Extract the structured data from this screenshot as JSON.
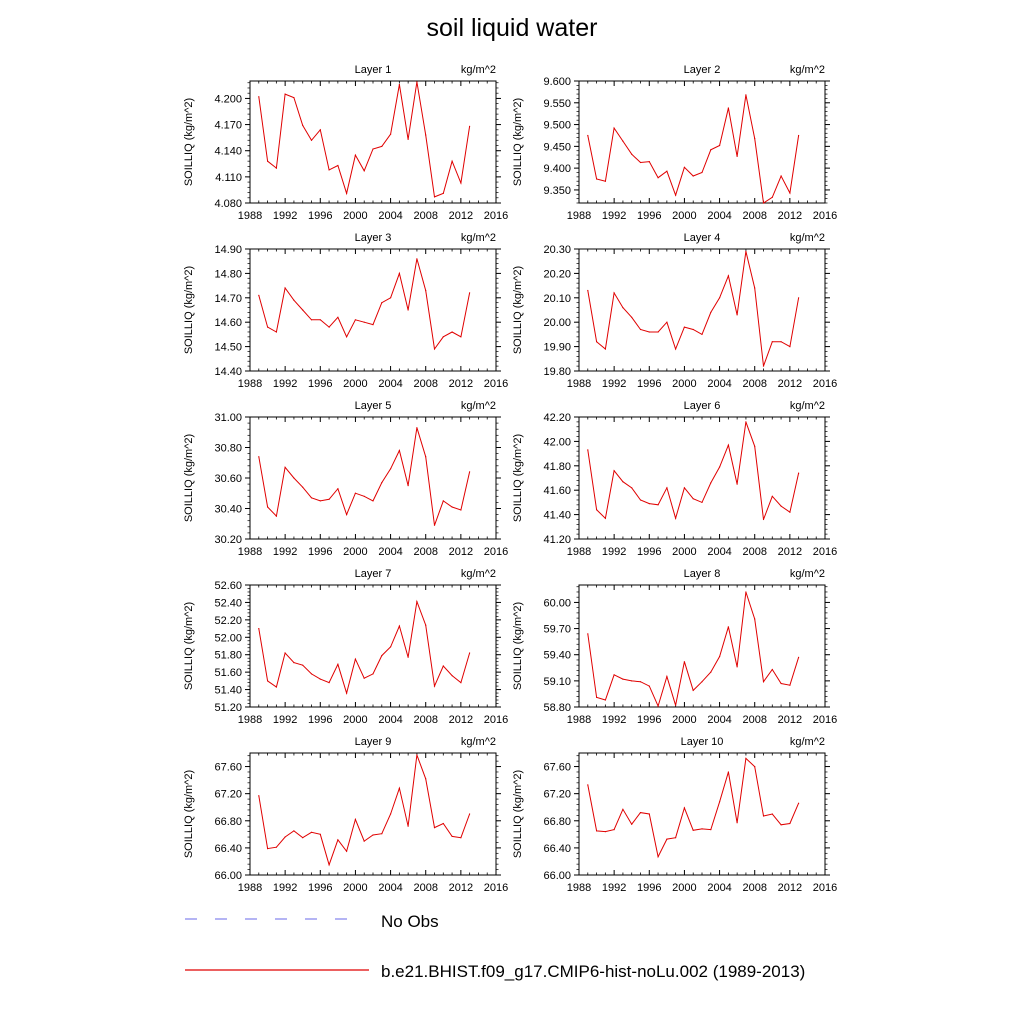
{
  "title": "soil liquid water",
  "chart_data": [
    {
      "type": "line",
      "title": "Layer 1",
      "units": "kg/m^2",
      "ylabel": "SOILLIQ  (kg/m^2)",
      "xlim": [
        1988,
        2016
      ],
      "ylim": [
        4.08,
        4.22
      ],
      "xticks": [
        1988,
        1992,
        1996,
        2000,
        2004,
        2008,
        2012,
        2016
      ],
      "yticks": [
        "4.080",
        "4.110",
        "4.140",
        "4.170",
        "4.200"
      ],
      "series": [
        {
          "color": "#e00000",
          "x": [
            1989,
            1990,
            1991,
            1992,
            1993,
            1994,
            1995,
            1996,
            1997,
            1998,
            1999,
            2000,
            2001,
            2002,
            2003,
            2004,
            2005,
            2006,
            2007,
            2008,
            2009,
            2010,
            2011,
            2012,
            2013
          ],
          "y": [
            4.202,
            4.128,
            4.12,
            4.205,
            4.201,
            4.169,
            4.152,
            4.164,
            4.118,
            4.123,
            4.091,
            4.135,
            4.117,
            4.142,
            4.145,
            4.159,
            4.216,
            4.153,
            4.219,
            4.158,
            4.087,
            4.091,
            4.128,
            4.103,
            4.168
          ]
        }
      ]
    },
    {
      "type": "line",
      "title": "Layer 2",
      "units": "kg/m^2",
      "ylabel": "SOILLIQ  (kg/m^2)",
      "xlim": [
        1988,
        2016
      ],
      "ylim": [
        9.32,
        9.6
      ],
      "xticks": [
        1988,
        1992,
        1996,
        2000,
        2004,
        2008,
        2012,
        2016
      ],
      "yticks": [
        "9.350",
        "9.400",
        "9.450",
        "9.500",
        "9.550",
        "9.600"
      ],
      "series": [
        {
          "color": "#e00000",
          "x": [
            1989,
            1990,
            1991,
            1992,
            1993,
            1994,
            1995,
            1996,
            1997,
            1998,
            1999,
            2000,
            2001,
            2002,
            2003,
            2004,
            2005,
            2006,
            2007,
            2008,
            2009,
            2010,
            2011,
            2012,
            2013
          ],
          "y": [
            9.475,
            9.375,
            9.37,
            9.492,
            9.462,
            9.432,
            9.413,
            9.415,
            9.378,
            9.393,
            9.338,
            9.402,
            9.382,
            9.39,
            9.442,
            9.452,
            9.538,
            9.427,
            9.568,
            9.468,
            9.32,
            9.333,
            9.382,
            9.343,
            9.475
          ]
        }
      ]
    },
    {
      "type": "line",
      "title": "Layer 3",
      "units": "kg/m^2",
      "ylabel": "SOILLIQ  (kg/m^2)",
      "xlim": [
        1988,
        2016
      ],
      "ylim": [
        14.4,
        14.9
      ],
      "xticks": [
        1988,
        1992,
        1996,
        2000,
        2004,
        2008,
        2012,
        2016
      ],
      "yticks": [
        "14.40",
        "14.50",
        "14.60",
        "14.70",
        "14.80",
        "14.90"
      ],
      "series": [
        {
          "color": "#e00000",
          "x": [
            1989,
            1990,
            1991,
            1992,
            1993,
            1994,
            1995,
            1996,
            1997,
            1998,
            1999,
            2000,
            2001,
            2002,
            2003,
            2004,
            2005,
            2006,
            2007,
            2008,
            2009,
            2010,
            2011,
            2012,
            2013
          ],
          "y": [
            14.71,
            14.58,
            14.56,
            14.74,
            14.69,
            14.65,
            14.61,
            14.61,
            14.58,
            14.62,
            14.54,
            14.61,
            14.6,
            14.59,
            14.68,
            14.7,
            14.8,
            14.65,
            14.86,
            14.73,
            14.49,
            14.54,
            14.56,
            14.54,
            14.72
          ]
        }
      ]
    },
    {
      "type": "line",
      "title": "Layer 4",
      "units": "kg/m^2",
      "ylabel": "SOILLIQ  (kg/m^2)",
      "xlim": [
        1988,
        2016
      ],
      "ylim": [
        19.8,
        20.3
      ],
      "xticks": [
        1988,
        1992,
        1996,
        2000,
        2004,
        2008,
        2012,
        2016
      ],
      "yticks": [
        "19.80",
        "19.90",
        "20.00",
        "20.10",
        "20.20",
        "20.30"
      ],
      "series": [
        {
          "color": "#e00000",
          "x": [
            1989,
            1990,
            1991,
            1992,
            1993,
            1994,
            1995,
            1996,
            1997,
            1998,
            1999,
            2000,
            2001,
            2002,
            2003,
            2004,
            2005,
            2006,
            2007,
            2008,
            2009,
            2010,
            2011,
            2012,
            2013
          ],
          "y": [
            20.13,
            19.92,
            19.89,
            20.12,
            20.06,
            20.02,
            19.97,
            19.96,
            19.96,
            20.0,
            19.89,
            19.98,
            19.97,
            19.95,
            20.04,
            20.1,
            20.19,
            20.03,
            20.29,
            20.14,
            19.82,
            19.92,
            19.92,
            19.9,
            20.1
          ]
        }
      ]
    },
    {
      "type": "line",
      "title": "Layer 5",
      "units": "kg/m^2",
      "ylabel": "SOILLIQ  (kg/m^2)",
      "xlim": [
        1988,
        2016
      ],
      "ylim": [
        30.2,
        31.0
      ],
      "xticks": [
        1988,
        1992,
        1996,
        2000,
        2004,
        2008,
        2012,
        2016
      ],
      "yticks": [
        "30.20",
        "30.40",
        "30.60",
        "30.80",
        "31.00"
      ],
      "series": [
        {
          "color": "#e00000",
          "x": [
            1989,
            1990,
            1991,
            1992,
            1993,
            1994,
            1995,
            1996,
            1997,
            1998,
            1999,
            2000,
            2001,
            2002,
            2003,
            2004,
            2005,
            2006,
            2007,
            2008,
            2009,
            2010,
            2011,
            2012,
            2013
          ],
          "y": [
            30.74,
            30.41,
            30.35,
            30.67,
            30.6,
            30.54,
            30.47,
            30.45,
            30.46,
            30.53,
            30.36,
            30.5,
            30.48,
            30.45,
            30.57,
            30.66,
            30.78,
            30.55,
            30.93,
            30.74,
            30.29,
            30.45,
            30.41,
            30.39,
            30.64
          ]
        }
      ]
    },
    {
      "type": "line",
      "title": "Layer 6",
      "units": "kg/m^2",
      "ylabel": "SOILLIQ  (kg/m^2)",
      "xlim": [
        1988,
        2016
      ],
      "ylim": [
        41.2,
        42.2
      ],
      "xticks": [
        1988,
        1992,
        1996,
        2000,
        2004,
        2008,
        2012,
        2016
      ],
      "yticks": [
        "41.20",
        "41.40",
        "41.60",
        "41.80",
        "42.00",
        "42.20"
      ],
      "series": [
        {
          "color": "#e00000",
          "x": [
            1989,
            1990,
            1991,
            1992,
            1993,
            1994,
            1995,
            1996,
            1997,
            1998,
            1999,
            2000,
            2001,
            2002,
            2003,
            2004,
            2005,
            2006,
            2007,
            2008,
            2009,
            2010,
            2011,
            2012,
            2013
          ],
          "y": [
            41.93,
            41.44,
            41.37,
            41.76,
            41.67,
            41.62,
            41.52,
            41.49,
            41.48,
            41.62,
            41.37,
            41.62,
            41.53,
            41.5,
            41.66,
            41.79,
            41.97,
            41.65,
            42.16,
            41.96,
            41.36,
            41.55,
            41.47,
            41.42,
            41.74
          ]
        }
      ]
    },
    {
      "type": "line",
      "title": "Layer 7",
      "units": "kg/m^2",
      "ylabel": "SOILLIQ  (kg/m^2)",
      "xlim": [
        1988,
        2016
      ],
      "ylim": [
        51.2,
        52.6
      ],
      "xticks": [
        1988,
        1992,
        1996,
        2000,
        2004,
        2008,
        2012,
        2016
      ],
      "yticks": [
        "51.20",
        "51.40",
        "51.60",
        "51.80",
        "52.00",
        "52.20",
        "52.40",
        "52.60"
      ],
      "series": [
        {
          "color": "#e00000",
          "x": [
            1989,
            1990,
            1991,
            1992,
            1993,
            1994,
            1995,
            1996,
            1997,
            1998,
            1999,
            2000,
            2001,
            2002,
            2003,
            2004,
            2005,
            2006,
            2007,
            2008,
            2009,
            2010,
            2011,
            2012,
            2013
          ],
          "y": [
            52.1,
            51.5,
            51.43,
            51.82,
            51.71,
            51.68,
            51.58,
            51.52,
            51.48,
            51.69,
            51.36,
            51.75,
            51.53,
            51.58,
            51.79,
            51.89,
            52.13,
            51.77,
            52.41,
            52.14,
            51.44,
            51.67,
            51.56,
            51.48,
            51.82
          ]
        }
      ]
    },
    {
      "type": "line",
      "title": "Layer 8",
      "units": "kg/m^2",
      "ylabel": "SOILLIQ  (kg/m^2)",
      "xlim": [
        1988,
        2016
      ],
      "ylim": [
        58.8,
        60.2
      ],
      "xticks": [
        1988,
        1992,
        1996,
        2000,
        2004,
        2008,
        2012,
        2016
      ],
      "yticks": [
        "58.80",
        "59.10",
        "59.40",
        "59.70",
        "60.00"
      ],
      "series": [
        {
          "color": "#e00000",
          "x": [
            1989,
            1990,
            1991,
            1992,
            1993,
            1994,
            1995,
            1996,
            1997,
            1998,
            1999,
            2000,
            2001,
            2002,
            2003,
            2004,
            2005,
            2006,
            2007,
            2008,
            2009,
            2010,
            2011,
            2012,
            2013
          ],
          "y": [
            59.64,
            58.91,
            58.88,
            59.17,
            59.12,
            59.1,
            59.09,
            59.04,
            58.81,
            59.15,
            58.82,
            59.32,
            58.99,
            59.09,
            59.2,
            59.38,
            59.72,
            59.26,
            60.12,
            59.81,
            59.09,
            59.23,
            59.07,
            59.05,
            59.37
          ]
        }
      ]
    },
    {
      "type": "line",
      "title": "Layer 9",
      "units": "kg/m^2",
      "ylabel": "SOILLIQ  (kg/m^2)",
      "xlim": [
        1988,
        2016
      ],
      "ylim": [
        66.0,
        67.8
      ],
      "xticks": [
        1988,
        1992,
        1996,
        2000,
        2004,
        2008,
        2012,
        2016
      ],
      "yticks": [
        "66.00",
        "66.40",
        "66.80",
        "67.20",
        "67.60"
      ],
      "series": [
        {
          "color": "#e00000",
          "x": [
            1989,
            1990,
            1991,
            1992,
            1993,
            1994,
            1995,
            1996,
            1997,
            1998,
            1999,
            2000,
            2001,
            2002,
            2003,
            2004,
            2005,
            2006,
            2007,
            2008,
            2009,
            2010,
            2011,
            2012,
            2013
          ],
          "y": [
            67.17,
            66.39,
            66.41,
            66.56,
            66.65,
            66.55,
            66.63,
            66.6,
            66.15,
            66.52,
            66.35,
            66.82,
            66.5,
            66.59,
            66.61,
            66.9,
            67.28,
            66.72,
            67.77,
            67.42,
            66.7,
            66.76,
            66.57,
            66.55,
            66.9
          ]
        }
      ]
    },
    {
      "type": "line",
      "title": "Layer 10",
      "units": "kg/m^2",
      "ylabel": "SOILLIQ  (kg/m^2)",
      "xlim": [
        1988,
        2016
      ],
      "ylim": [
        66.0,
        67.8
      ],
      "xticks": [
        1988,
        1992,
        1996,
        2000,
        2004,
        2008,
        2012,
        2016
      ],
      "yticks": [
        "66.00",
        "66.40",
        "66.80",
        "67.20",
        "67.60"
      ],
      "series": [
        {
          "color": "#e00000",
          "x": [
            1989,
            1990,
            1991,
            1992,
            1993,
            1994,
            1995,
            1996,
            1997,
            1998,
            1999,
            2000,
            2001,
            2002,
            2003,
            2004,
            2005,
            2006,
            2007,
            2008,
            2009,
            2010,
            2011,
            2012,
            2013
          ],
          "y": [
            67.33,
            66.65,
            66.64,
            66.67,
            66.97,
            66.75,
            66.92,
            66.9,
            66.27,
            66.53,
            66.55,
            66.99,
            66.66,
            66.68,
            66.67,
            67.08,
            67.52,
            66.77,
            67.72,
            67.6,
            66.87,
            66.9,
            66.74,
            66.76,
            67.06
          ]
        }
      ]
    }
  ],
  "legend": [
    {
      "label": "No Obs",
      "color": "#8888ee",
      "style": "dashed"
    },
    {
      "label": "b.e21.BHIST.f09_g17.CMIP6-hist-noLu.002 (1989-2013)",
      "color": "#e00000",
      "style": "solid"
    }
  ]
}
